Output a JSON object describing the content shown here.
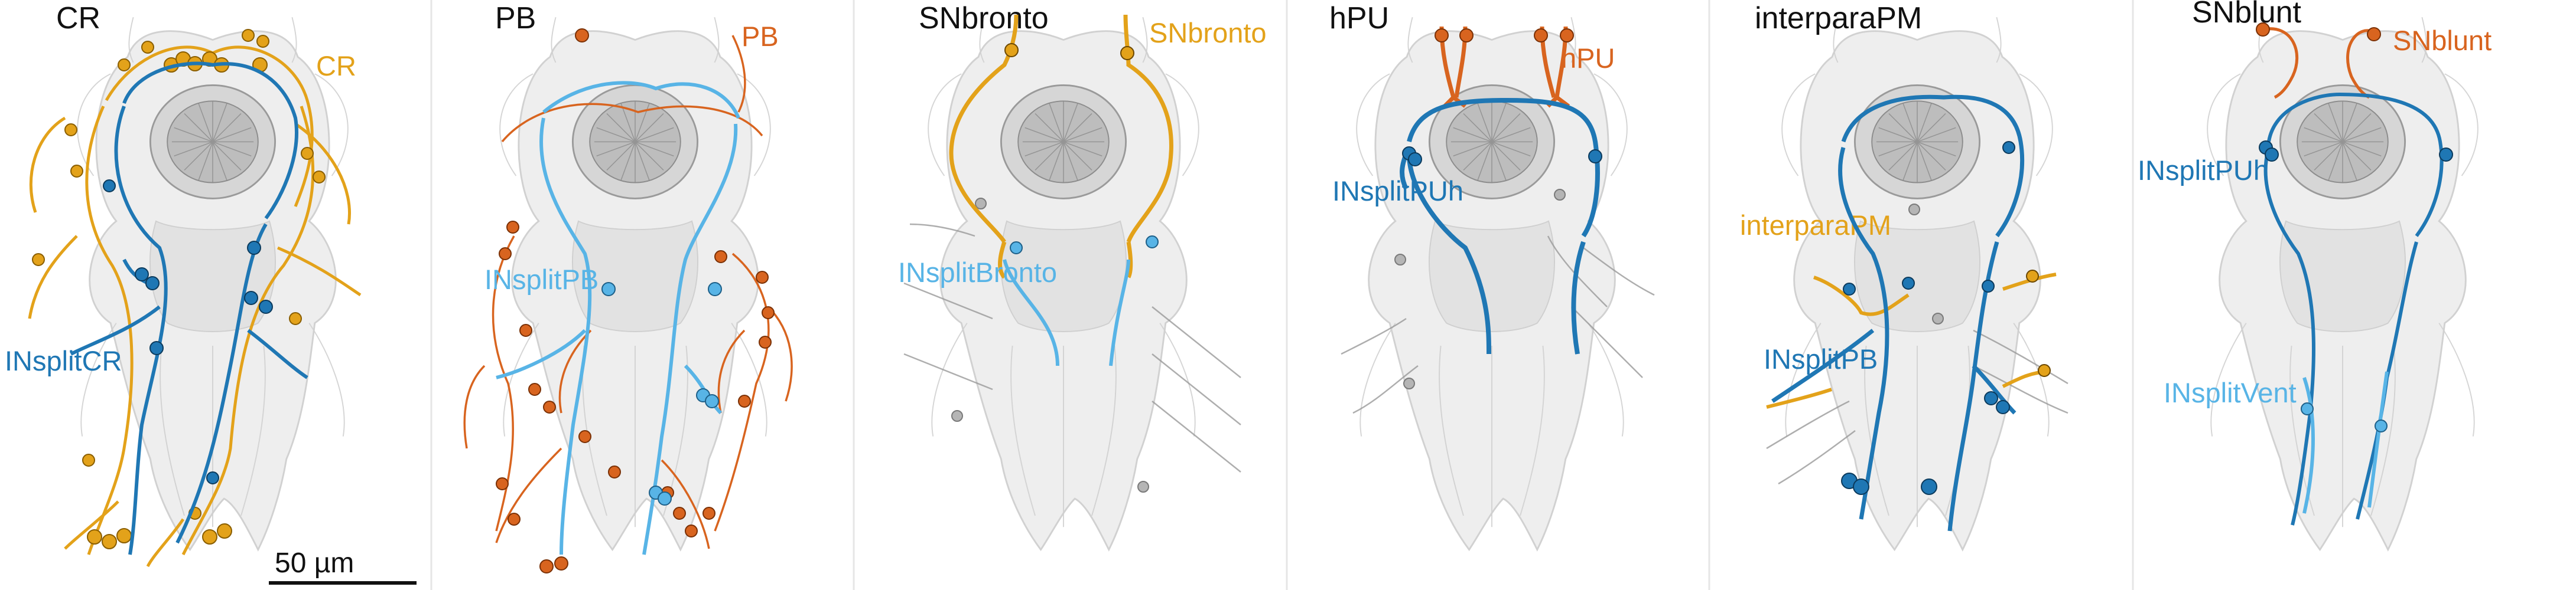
{
  "colors": {
    "background": "#ffffff",
    "tissue": "#c9c9c9",
    "neuropil": "#8c8c8c",
    "orange_gold": "#e3a21a",
    "orange_dark": "#d8641f",
    "blue_dark": "#1f77b4",
    "blue_light": "#58b4e6",
    "gray_neuron": "#9a9a9a",
    "divider": "#e6e6e6"
  },
  "panels": [
    {
      "title": "CR",
      "sensory": {
        "label": "CR",
        "color": "#e3a21a"
      },
      "interneuron": {
        "label": "INsplitCR",
        "color": "#1f77b4"
      }
    },
    {
      "title": "PB",
      "sensory": {
        "label": "PB",
        "color": "#d8641f"
      },
      "interneuron": {
        "label": "INsplitPB",
        "color": "#58b4e6"
      }
    },
    {
      "title": "SNbronto",
      "sensory": {
        "label": "SNbronto",
        "color": "#e3a21a"
      },
      "interneuron": {
        "label": "INsplitBronto",
        "color": "#58b4e6"
      }
    },
    {
      "title": "hPU",
      "sensory": {
        "label": "hPU",
        "color": "#d8641f"
      },
      "interneuron": {
        "label": "INsplitPUh",
        "color": "#1f77b4"
      }
    },
    {
      "title": "interparaPM",
      "sensory": {
        "label": "interparaPM",
        "color": "#e3a21a"
      },
      "interneuron": {
        "label": "INsplitPB",
        "color": "#1f77b4"
      }
    },
    {
      "title": "SNblunt",
      "sensory": {
        "label": "SNblunt",
        "color": "#d8641f"
      },
      "interneuron": {
        "label": "INsplitPUh",
        "color": "#1f77b4"
      },
      "interneuron2": {
        "label": "INsplitVent",
        "color": "#58b4e6"
      }
    }
  ],
  "scale_bar": {
    "label": "50 µm"
  }
}
